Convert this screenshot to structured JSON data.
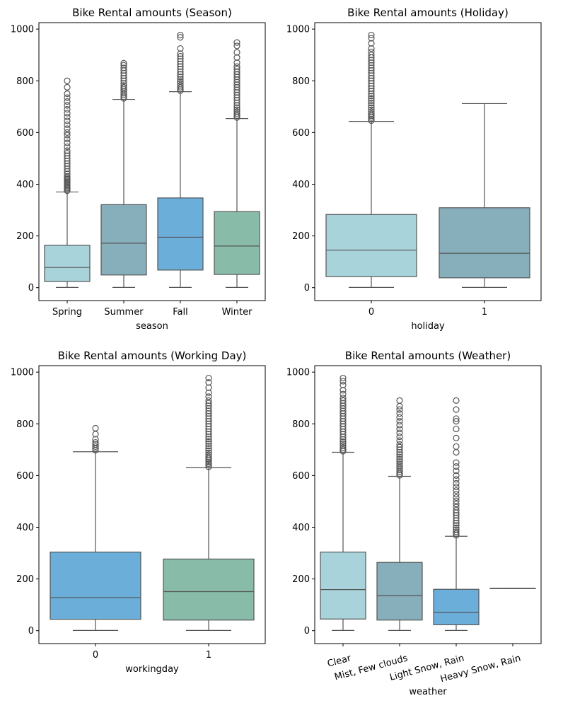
{
  "chart_data": [
    {
      "type": "box",
      "title": "Bike Rental amounts (Season)",
      "xlabel": "season",
      "ylabel": "",
      "ylim": [
        -50,
        1025
      ],
      "yticks": [
        0,
        200,
        400,
        600,
        800,
        1000
      ],
      "categories": [
        "Spring",
        "Summer",
        "Fall",
        "Winter"
      ],
      "colors": [
        "#a8d3db",
        "#86afbb",
        "#6aaed9",
        "#88bba8"
      ],
      "boxes": [
        {
          "min": 1,
          "q1": 24,
          "median": 78,
          "q3": 164,
          "max": 370,
          "fliers": [
            375,
            380,
            385,
            390,
            395,
            400,
            405,
            410,
            415,
            420,
            425,
            430,
            440,
            450,
            460,
            470,
            480,
            490,
            500,
            510,
            520,
            530,
            545,
            560,
            575,
            590,
            600,
            615,
            630,
            645,
            660,
            675,
            690,
            705,
            720,
            735,
            750,
            775,
            800
          ]
        },
        {
          "min": 1,
          "q1": 49,
          "median": 172,
          "q3": 321,
          "max": 728,
          "fliers": [
            732,
            738,
            745,
            752,
            760,
            768,
            775,
            782,
            790,
            800,
            810,
            820,
            830,
            840,
            850,
            860,
            868
          ]
        },
        {
          "min": 1,
          "q1": 68,
          "median": 195,
          "q3": 347,
          "max": 758,
          "fliers": [
            762,
            768,
            775,
            782,
            790,
            798,
            806,
            815,
            825,
            835,
            845,
            855,
            865,
            875,
            885,
            895,
            905,
            925,
            968,
            977
          ]
        },
        {
          "min": 1,
          "q1": 51,
          "median": 161,
          "q3": 294,
          "max": 654,
          "fliers": [
            658,
            665,
            672,
            680,
            688,
            696,
            705,
            715,
            725,
            735,
            745,
            755,
            765,
            775,
            785,
            795,
            805,
            815,
            825,
            835,
            845,
            855,
            870,
            890,
            910,
            935,
            948
          ]
        }
      ]
    },
    {
      "type": "box",
      "title": "Bike Rental amounts (Holiday)",
      "xlabel": "holiday",
      "ylabel": "",
      "ylim": [
        -50,
        1025
      ],
      "yticks": [
        0,
        200,
        400,
        600,
        800,
        1000
      ],
      "categories": [
        "0",
        "1"
      ],
      "colors": [
        "#a8d3db",
        "#86afbb"
      ],
      "boxes": [
        {
          "min": 1,
          "q1": 43,
          "median": 145,
          "q3": 283,
          "max": 643,
          "fliers": [
            646,
            652,
            658,
            665,
            672,
            680,
            688,
            696,
            705,
            714,
            723,
            732,
            741,
            750,
            760,
            770,
            780,
            790,
            800,
            810,
            820,
            830,
            840,
            850,
            860,
            870,
            880,
            890,
            900,
            912,
            925,
            945,
            965,
            977
          ]
        },
        {
          "min": 1,
          "q1": 38,
          "median": 133,
          "q3": 309,
          "max": 712,
          "fliers": []
        }
      ]
    },
    {
      "type": "box",
      "title": "Bike Rental amounts (Working Day)",
      "xlabel": "workingday",
      "ylabel": "",
      "ylim": [
        -50,
        1025
      ],
      "yticks": [
        0,
        200,
        400,
        600,
        800,
        1000
      ],
      "categories": [
        "0",
        "1"
      ],
      "colors": [
        "#6aaed9",
        "#88bba8"
      ],
      "boxes": [
        {
          "min": 1,
          "q1": 44,
          "median": 128,
          "q3": 304,
          "max": 692,
          "fliers": [
            698,
            705,
            712,
            720,
            728,
            740,
            760,
            783
          ]
        },
        {
          "min": 1,
          "q1": 41,
          "median": 151,
          "q3": 277,
          "max": 630,
          "fliers": [
            634,
            640,
            646,
            652,
            658,
            665,
            672,
            680,
            688,
            696,
            705,
            714,
            723,
            732,
            741,
            750,
            760,
            770,
            780,
            790,
            800,
            810,
            820,
            830,
            840,
            850,
            860,
            870,
            880,
            890,
            905,
            920,
            940,
            960,
            977
          ]
        }
      ]
    },
    {
      "type": "box",
      "title": "Bike Rental amounts (Weather)",
      "xlabel": "weather",
      "ylabel": "",
      "ylim": [
        -50,
        1025
      ],
      "yticks": [
        0,
        200,
        400,
        600,
        800,
        1000
      ],
      "categories": [
        "Clear",
        "Mist, Few clouds",
        "Light Snow, Rain",
        "Heavy Snow, Rain"
      ],
      "colors": [
        "#a8d3db",
        "#86afbb",
        "#6aaed9",
        "#88bba8"
      ],
      "boxes": [
        {
          "min": 1,
          "q1": 45,
          "median": 159,
          "q3": 304,
          "max": 690,
          "fliers": [
            694,
            700,
            707,
            715,
            723,
            731,
            740,
            750,
            760,
            770,
            780,
            790,
            800,
            810,
            820,
            830,
            840,
            850,
            860,
            870,
            880,
            890,
            900,
            915,
            930,
            950,
            965,
            977
          ]
        },
        {
          "min": 1,
          "q1": 41,
          "median": 135,
          "q3": 264,
          "max": 597,
          "fliers": [
            601,
            607,
            614,
            621,
            629,
            637,
            645,
            654,
            663,
            672,
            681,
            690,
            700,
            710,
            720,
            735,
            750,
            765,
            780,
            795,
            810,
            825,
            840,
            855,
            868,
            890
          ]
        },
        {
          "min": 1,
          "q1": 23,
          "median": 71,
          "q3": 160,
          "max": 365,
          "fliers": [
            369,
            375,
            382,
            390,
            398,
            407,
            416,
            426,
            436,
            446,
            456,
            466,
            478,
            490,
            502,
            515,
            528,
            542,
            556,
            570,
            585,
            600,
            618,
            635,
            650,
            690,
            712,
            745,
            780,
            810,
            820,
            855,
            890
          ]
        },
        {
          "min": 164,
          "q1": 164,
          "median": 164,
          "q3": 164,
          "max": 164,
          "fliers": []
        }
      ]
    }
  ]
}
